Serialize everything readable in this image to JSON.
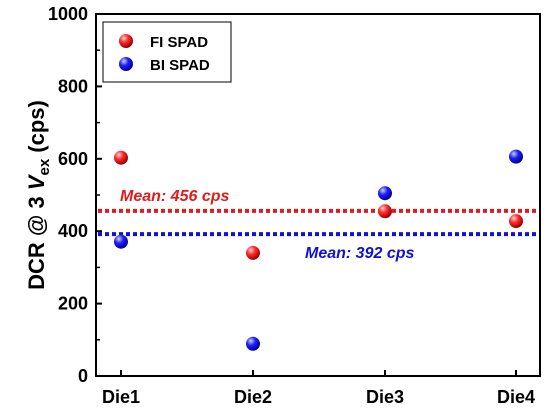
{
  "chart_data": {
    "type": "scatter",
    "categories": [
      "Die1",
      "Die2",
      "Die3",
      "Die4"
    ],
    "ylabel": {
      "prefix": "DCR @ 3 ",
      "var": "V",
      "sub": "ex",
      "suffix": " (cps)"
    },
    "ylim": [
      0,
      1000
    ],
    "yticks": [
      0,
      200,
      400,
      600,
      800,
      1000
    ],
    "grid": false,
    "legend_position": "top-left",
    "series": [
      {
        "name": "FI SPAD",
        "color": "#e31a1c",
        "values": [
          603,
          340,
          455,
          428
        ]
      },
      {
        "name": "BI SPAD",
        "color": "#1010d8",
        "values": [
          371,
          89,
          505,
          606
        ]
      }
    ],
    "mean_lines": [
      {
        "value": 456,
        "label": "Mean: 456 cps",
        "color": "#e31a1c"
      },
      {
        "value": 392,
        "label": "Mean: 392 cps",
        "color": "#1010d8"
      }
    ]
  }
}
